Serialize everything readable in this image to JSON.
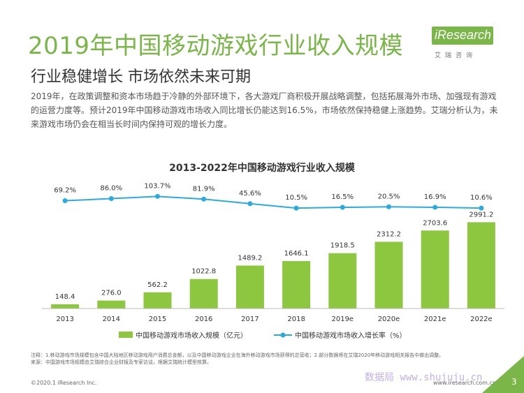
{
  "page": {
    "title": "2019年中国移动游戏行业收入规模",
    "subtitle": "行业稳健增长 市场依然未来可期",
    "intro": "2019年，在政策调整和资本市场趋于冷静的外部环境下，各大游戏厂商积极开展战略调整，包括拓展海外市场、加强现有游戏的运营力度等。预计2019年中国移动游戏市场收入同比增长仍能达到16.5%，市场依然保持稳健上涨趋势。艾瑞分析认为，未来游戏市场仍会在相当长时间内保持可观的增长力度。",
    "logo_text": "iResearch",
    "logo_sub": "艾瑞咨询",
    "notes": "注释：1.移动游戏市场规模包含中国大陆地区移动游戏用户消费总金额，以及中国移动游戏企业在海外移动游戏市场获得的总营收；2.部分数据将在艾瑞2020年移动游戏相关报告中做出调整。",
    "source": "来源：中国游戏市场规模由艾瑞综合企业财报及专家访谈，根据艾瑞统计模型核算。",
    "copyright": "©2020.1 iResearch Inc.",
    "website": "www.iresearch.com.cn",
    "page_number": "3",
    "watermark": "数据局 www.shujuju.cn"
  },
  "colors": {
    "accent": "#7ab648",
    "bar": "#8dc63f",
    "line": "#29abe2"
  },
  "chart_data": {
    "type": "bar",
    "title": "2013-2022年中国移动游戏行业收入规模",
    "categories": [
      "2013",
      "2014",
      "2015",
      "2016",
      "2017",
      "2018",
      "2019e",
      "2020e",
      "2021e",
      "2022e"
    ],
    "series": [
      {
        "name": "中国移动游戏市场收入规模（亿元）",
        "type": "bar",
        "values": [
          148.4,
          276.0,
          562.2,
          1022.8,
          1489.2,
          1646.1,
          1918.5,
          2312.2,
          2703.6,
          2991.2
        ],
        "labels": [
          "148.4",
          "276.0",
          "562.2",
          "1022.8",
          "1489.2",
          "1646.1",
          "1918.5",
          "2312.2",
          "2703.6",
          "2991.2"
        ]
      },
      {
        "name": "中国移动游戏市场收入增长率（%）",
        "type": "line",
        "values": [
          69.2,
          86.0,
          103.7,
          81.9,
          45.6,
          10.5,
          16.5,
          20.5,
          16.9,
          10.6
        ],
        "labels": [
          "69.2%",
          "86.0%",
          "103.7%",
          "81.9%",
          "45.6%",
          "10.5%",
          "16.5%",
          "20.5%",
          "16.9%",
          "10.6%"
        ]
      }
    ],
    "ylim_bar": [
      0,
      3000
    ],
    "ylim_line": [
      -100,
      200
    ],
    "legend_position": "bottom"
  }
}
